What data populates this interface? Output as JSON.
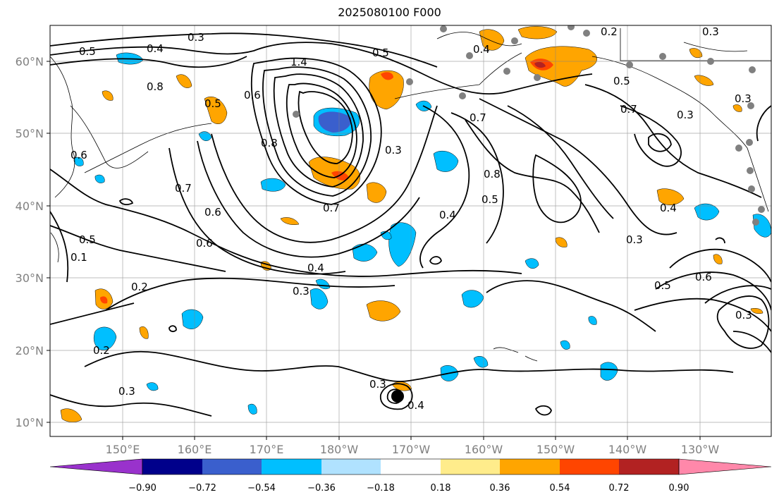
{
  "title": "2025080100 F000",
  "map": {
    "lat_labels": [
      "60°N",
      "50°N",
      "40°N",
      "30°N",
      "20°N",
      "10°N"
    ],
    "lon_labels": [
      "150°E",
      "160°E",
      "170°E",
      "180°W",
      "170°W",
      "160°W",
      "150°W",
      "140°W",
      "130°W"
    ],
    "contour_labels": [
      "0.3",
      "0.4",
      "0.5",
      "0.5",
      "0.8",
      "0.6",
      "1.4",
      "0.6",
      "0.5",
      "0.3",
      "0.7",
      "0.8",
      "0.5",
      "0.4",
      "0.3",
      "0.7",
      "0.6",
      "0.6",
      "0.7",
      "0.8",
      "0.7",
      "0.5",
      "0.4",
      "0.4",
      "0.3",
      "0.3",
      "0.3",
      "0.5",
      "0.6",
      "0.3",
      "0.2",
      "0.2",
      "0.3",
      "0.3",
      "0.4",
      "0.3",
      "0.2",
      "0.4",
      "0.5",
      "0.1"
    ],
    "colors": {
      "land_lines": "#000000",
      "grid": "#808080",
      "station": "#808080"
    }
  },
  "colorbar": {
    "tick_labels": [
      "−0.90",
      "−0.72",
      "−0.54",
      "−0.36",
      "−0.18",
      "0.18",
      "0.36",
      "0.54",
      "0.72",
      "0.90"
    ],
    "colors": [
      "#9932CC",
      "#00008B",
      "#3A5FCD",
      "#00BFFF",
      "#B0E2FF",
      "#FFFFFF",
      "#FFEC8B",
      "#FFA500",
      "#FF4500",
      "#B22222",
      "#FF88AA"
    ]
  }
}
